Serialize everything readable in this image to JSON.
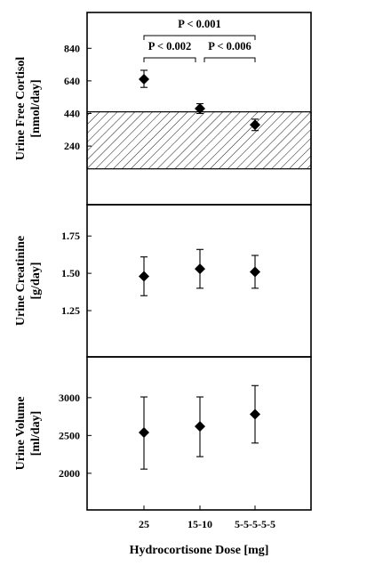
{
  "chart_data": [
    {
      "type": "scatter",
      "panel": "cortisol",
      "ylabel_line1": "Urine Free Cortisol",
      "ylabel_line2": "[nmol/day]",
      "yticks": [
        240,
        440,
        640,
        840
      ],
      "ylim": [
        -120,
        1060
      ],
      "categories": [
        "25",
        "15-10",
        "5-5-5-5-5"
      ],
      "values": [
        650,
        470,
        370
      ],
      "err_low": [
        600,
        440,
        335
      ],
      "err_high": [
        705,
        500,
        405
      ],
      "reference_range": [
        100,
        450
      ],
      "reference_fill": "hatched",
      "significance": [
        {
          "from": 0,
          "to": 1,
          "p": "0.002",
          "label": "P < 0.002"
        },
        {
          "from": 1,
          "to": 2,
          "p": "0.006",
          "label": "P < 0.006"
        },
        {
          "from": 0,
          "to": 2,
          "p": "0.001",
          "label": "P < 0.001"
        }
      ]
    },
    {
      "type": "scatter",
      "panel": "creatinine",
      "ylabel_line1": "Urine Creatinine",
      "ylabel_line2": "[g/day]",
      "yticks": [
        "1.25",
        "1.50",
        "1.75"
      ],
      "ylim": [
        0.94,
        1.96
      ],
      "categories": [
        "25",
        "15-10",
        "5-5-5-5-5"
      ],
      "values": [
        1.48,
        1.53,
        1.51
      ],
      "err_low": [
        1.35,
        1.4,
        1.4
      ],
      "err_high": [
        1.61,
        1.66,
        1.62
      ]
    },
    {
      "type": "scatter",
      "panel": "volume",
      "ylabel_line1": "Urine Volume",
      "ylabel_line2": "[ml/day]",
      "yticks": [
        2000,
        2500,
        3000
      ],
      "ylim": [
        1515,
        3540
      ],
      "categories": [
        "25",
        "15-10",
        "5-5-5-5-5"
      ],
      "values": [
        2540,
        2620,
        2780
      ],
      "err_low": [
        2055,
        2220,
        2400
      ],
      "err_high": [
        3010,
        3010,
        3160
      ]
    }
  ],
  "xaxis": {
    "label": "Hydrocortisone Dose [mg]",
    "ticks": [
      "25",
      "15-10",
      "5-5-5-5-5"
    ]
  },
  "colors": {
    "ink": "#000000",
    "background": "#ffffff"
  }
}
